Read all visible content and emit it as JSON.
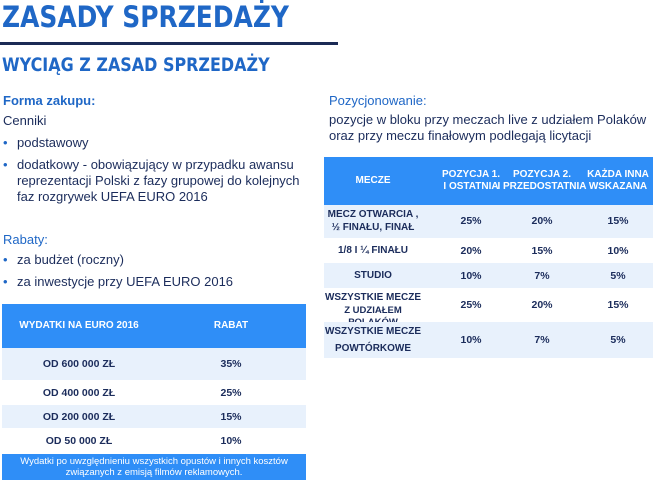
{
  "title": "ZASADY SPRZEDAŻY",
  "subtitle": "WYCIĄG Z ZASAD SPRZEDAŻY",
  "left": {
    "forma_heading": "Forma zakupu:",
    "cenniki_label": "Cenniki",
    "cenniki_items": [
      "podstawowy",
      "dodatkowy - obowiązujący w przypadku awansu",
      "reprezentacji Polski z fazy grupowej do kolejnych",
      "faz rozgrywek UEFA EURO 2016"
    ],
    "rabaty_heading": "Rabaty:",
    "rabaty_items": [
      "za budżet  (roczny)",
      "za inwestycje przy UEFA EURO 2016"
    ],
    "discount_table": {
      "headers": [
        "WYDATKI NA  EURO 2016",
        "RABAT"
      ],
      "rows": [
        [
          "OD  600 000 ZŁ",
          "35%"
        ],
        [
          "OD  400 000 ZŁ",
          "25%"
        ],
        [
          "OD  200 000 ZŁ",
          "15%"
        ],
        [
          "OD  50 000 ZŁ",
          "10%"
        ]
      ],
      "footnote_line1": "Wydatki po uwzględnieniu wszystkich opustów i innych kosztów",
      "footnote_line2": "związanych z emisją filmów reklamowych."
    }
  },
  "right": {
    "heading": "Pozycjonowanie:",
    "desc_line1": "pozycje w bloku przy meczach live z udziałem Polaków",
    "desc_line2": "oraz przy meczu finałowym podlegają licytacji",
    "position_table": {
      "headers": [
        [
          "MECZE",
          ""
        ],
        [
          "POZYCJA 1.",
          "I OSTATNIA"
        ],
        [
          "POZYCJA 2.",
          "I PRZEDOSTATNIA"
        ],
        [
          "KAŻDA INNA",
          "WSKAZANA"
        ]
      ],
      "rows": [
        {
          "label1": "MECZ OTWARCIA ,",
          "label2": "½ FINAŁU, FINAŁ",
          "values": [
            "25%",
            "20%",
            "15%"
          ]
        },
        {
          "label1": "1/8  I  ¼ FINAŁU",
          "label2": "",
          "values": [
            "20%",
            "15%",
            "10%"
          ]
        },
        {
          "label1": "STUDIO",
          "label2": "",
          "values": [
            "10%",
            "7%",
            "5%"
          ]
        },
        {
          "label1": "WSZYSTKIE  MECZE",
          "label2": "Z UDZIAŁEM POLAKÓW",
          "values": [
            "25%",
            "20%",
            "15%"
          ]
        },
        {
          "label1": "WSZYSTKIE MECZE",
          "label2": "POWTÓRKOWE",
          "values": [
            "10%",
            "7%",
            "5%"
          ]
        }
      ]
    }
  },
  "colors": {
    "title_blue": "#1f67c6",
    "table_header_blue": "#2f8ef7",
    "row_band_light": "#e8f1fc",
    "dark_navy": "#1b2c5b"
  }
}
